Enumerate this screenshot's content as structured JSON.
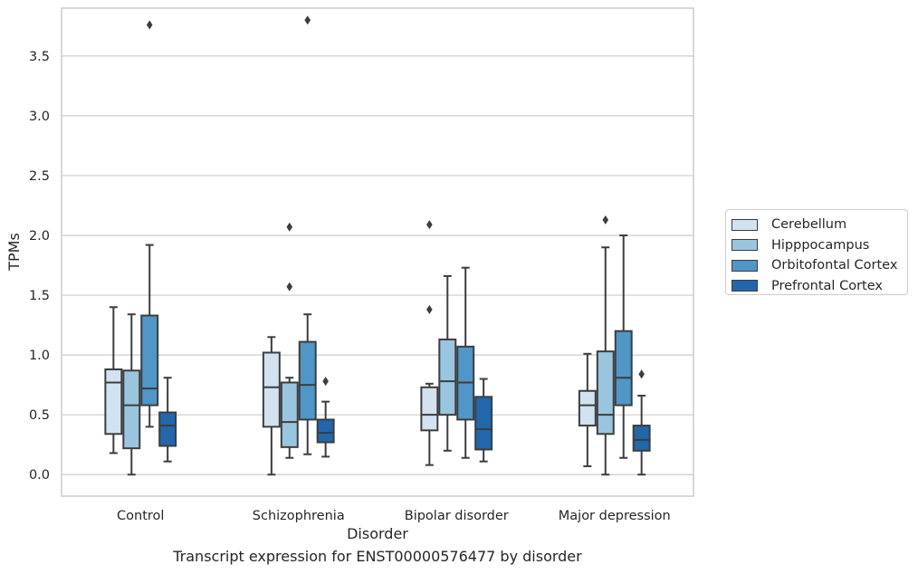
{
  "chart_data": {
    "type": "boxplot",
    "caption": "Transcript expression for ENST00000576477 by disorder",
    "xlabel": "Disorder",
    "ylabel": "TPMs",
    "ylim": [
      -0.18,
      3.9
    ],
    "yticks": [
      "0.0",
      "0.5",
      "1.0",
      "1.5",
      "2.0",
      "2.5",
      "3.0",
      "3.5"
    ],
    "grid": "horizontal",
    "legend_position": "outside-right",
    "categories": [
      "Control",
      "Schizophrenia",
      "Bipolar disorder",
      "Major depression"
    ],
    "series": [
      {
        "name": "Cerebellum",
        "color": "#d2e2f1",
        "boxes": [
          {
            "whislo": 0.18,
            "q1": 0.34,
            "med": 0.77,
            "q3": 0.88,
            "whishi": 1.4,
            "fliers": []
          },
          {
            "whislo": 0.0,
            "q1": 0.4,
            "med": 0.73,
            "q3": 1.02,
            "whishi": 1.15,
            "fliers": []
          },
          {
            "whislo": 0.08,
            "q1": 0.37,
            "med": 0.5,
            "q3": 0.73,
            "whishi": 0.76,
            "fliers": [
              1.38,
              2.09
            ]
          },
          {
            "whislo": 0.07,
            "q1": 0.41,
            "med": 0.58,
            "q3": 0.7,
            "whishi": 1.01,
            "fliers": []
          }
        ]
      },
      {
        "name": "Hipppocampus",
        "color": "#9ac5de",
        "boxes": [
          {
            "whislo": 0.0,
            "q1": 0.22,
            "med": 0.58,
            "q3": 0.87,
            "whishi": 1.34,
            "fliers": []
          },
          {
            "whislo": 0.14,
            "q1": 0.23,
            "med": 0.44,
            "q3": 0.77,
            "whishi": 0.81,
            "fliers": [
              1.57,
              2.07
            ]
          },
          {
            "whislo": 0.2,
            "q1": 0.5,
            "med": 0.78,
            "q3": 1.13,
            "whishi": 1.66,
            "fliers": []
          },
          {
            "whislo": 0.0,
            "q1": 0.34,
            "med": 0.5,
            "q3": 1.03,
            "whishi": 1.9,
            "fliers": [
              2.13
            ]
          }
        ]
      },
      {
        "name": "Orbitofontal Cortex",
        "color": "#5096c6",
        "boxes": [
          {
            "whislo": 0.4,
            "q1": 0.58,
            "med": 0.72,
            "q3": 1.33,
            "whishi": 1.92,
            "fliers": [
              3.76
            ]
          },
          {
            "whislo": 0.17,
            "q1": 0.46,
            "med": 0.75,
            "q3": 1.11,
            "whishi": 1.34,
            "fliers": [
              3.8
            ]
          },
          {
            "whislo": 0.14,
            "q1": 0.46,
            "med": 0.77,
            "q3": 1.07,
            "whishi": 1.73,
            "fliers": []
          },
          {
            "whislo": 0.14,
            "q1": 0.58,
            "med": 0.81,
            "q3": 1.2,
            "whishi": 2.0,
            "fliers": []
          }
        ]
      },
      {
        "name": "Prefrontal Cortex",
        "color": "#2266ab",
        "boxes": [
          {
            "whislo": 0.11,
            "q1": 0.24,
            "med": 0.41,
            "q3": 0.52,
            "whishi": 0.81,
            "fliers": []
          },
          {
            "whislo": 0.15,
            "q1": 0.27,
            "med": 0.35,
            "q3": 0.46,
            "whishi": 0.61,
            "fliers": [
              0.78
            ]
          },
          {
            "whislo": 0.11,
            "q1": 0.21,
            "med": 0.38,
            "q3": 0.65,
            "whishi": 0.8,
            "fliers": []
          },
          {
            "whislo": 0.0,
            "q1": 0.2,
            "med": 0.29,
            "q3": 0.41,
            "whishi": 0.66,
            "fliers": [
              0.84
            ]
          }
        ]
      }
    ]
  }
}
